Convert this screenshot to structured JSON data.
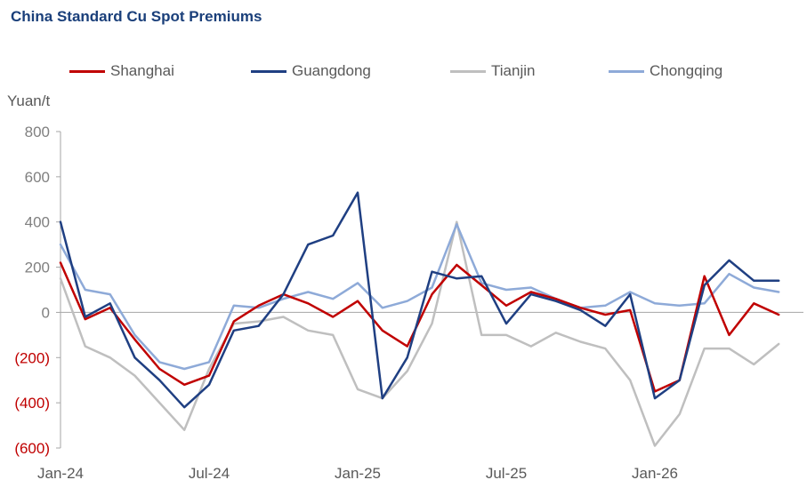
{
  "chart_data": {
    "type": "line",
    "title": "China Standard Cu Spot Premiums",
    "ylabel": "Yuan/t",
    "ylim": [
      -600,
      800
    ],
    "yticks": [
      {
        "value": 800,
        "label": "800",
        "color": "#808080"
      },
      {
        "value": 600,
        "label": "600",
        "color": "#808080"
      },
      {
        "value": 400,
        "label": "400",
        "color": "#808080"
      },
      {
        "value": 200,
        "label": "200",
        "color": "#808080"
      },
      {
        "value": 0,
        "label": "0",
        "color": "#808080"
      },
      {
        "value": -200,
        "label": "(200)",
        "color": "#c00000"
      },
      {
        "value": -400,
        "label": "(400)",
        "color": "#c00000"
      },
      {
        "value": -600,
        "label": "(600)",
        "color": "#c00000"
      }
    ],
    "xlim": [
      "2024-01",
      "2026-07"
    ],
    "xticks": [
      "Jan-24",
      "Jul-24",
      "Jan-25",
      "Jul-25",
      "Jan-26"
    ],
    "xtick_months": [
      "2024-01",
      "2024-07",
      "2025-01",
      "2025-07",
      "2026-01"
    ],
    "legend": "top",
    "grid": false,
    "series": [
      {
        "name": "Shanghai",
        "color": "#c00000",
        "x": [
          "2024-01",
          "2024-02",
          "2024-03",
          "2024-04",
          "2024-05",
          "2024-06",
          "2024-07",
          "2024-08",
          "2024-09",
          "2024-10",
          "2024-11",
          "2024-12",
          "2025-01",
          "2025-02",
          "2025-03",
          "2025-04",
          "2025-05",
          "2025-06",
          "2025-07",
          "2025-08",
          "2025-09",
          "2025-10",
          "2025-11",
          "2025-12",
          "2026-01",
          "2026-02",
          "2026-03",
          "2026-04",
          "2026-05",
          "2026-06"
        ],
        "values": [
          220,
          -30,
          20,
          -120,
          -250,
          -320,
          -280,
          -40,
          30,
          80,
          40,
          -20,
          50,
          -80,
          -150,
          80,
          210,
          120,
          30,
          90,
          60,
          20,
          -10,
          10,
          -350,
          -300,
          160,
          -100,
          40,
          -10
        ]
      },
      {
        "name": "Guangdong",
        "color": "#1f3f82",
        "x": [
          "2024-01",
          "2024-02",
          "2024-03",
          "2024-04",
          "2024-05",
          "2024-06",
          "2024-07",
          "2024-08",
          "2024-09",
          "2024-10",
          "2024-11",
          "2024-12",
          "2025-01",
          "2025-02",
          "2025-03",
          "2025-04",
          "2025-05",
          "2025-06",
          "2025-07",
          "2025-08",
          "2025-09",
          "2025-10",
          "2025-11",
          "2025-12",
          "2026-01",
          "2026-02",
          "2026-03",
          "2026-04",
          "2026-05",
          "2026-06"
        ],
        "values": [
          400,
          -20,
          40,
          -200,
          -300,
          -420,
          -320,
          -80,
          -60,
          80,
          300,
          340,
          530,
          -380,
          -200,
          180,
          150,
          160,
          -50,
          80,
          50,
          10,
          -60,
          80,
          -380,
          -300,
          120,
          230,
          140,
          140
        ]
      },
      {
        "name": "Tianjin",
        "color": "#bfbfbf",
        "x": [
          "2024-01",
          "2024-02",
          "2024-03",
          "2024-04",
          "2024-05",
          "2024-06",
          "2024-07",
          "2024-08",
          "2024-09",
          "2024-10",
          "2024-11",
          "2024-12",
          "2025-01",
          "2025-02",
          "2025-03",
          "2025-04",
          "2025-05",
          "2025-06",
          "2025-07",
          "2025-08",
          "2025-09",
          "2025-10",
          "2025-11",
          "2025-12",
          "2026-01",
          "2026-02",
          "2026-03",
          "2026-04",
          "2026-05",
          "2026-06"
        ],
        "values": [
          150,
          -150,
          -200,
          -280,
          -400,
          -520,
          -250,
          -50,
          -40,
          -20,
          -80,
          -100,
          -340,
          -380,
          -260,
          -50,
          400,
          -100,
          -100,
          -150,
          -90,
          -130,
          -160,
          -300,
          -590,
          -450,
          -160,
          -160,
          -230,
          -140
        ]
      },
      {
        "name": "Chongqing",
        "color": "#8eaad8",
        "x": [
          "2024-01",
          "2024-02",
          "2024-03",
          "2024-04",
          "2024-05",
          "2024-06",
          "2024-07",
          "2024-08",
          "2024-09",
          "2024-10",
          "2024-11",
          "2024-12",
          "2025-01",
          "2025-02",
          "2025-03",
          "2025-04",
          "2025-05",
          "2025-06",
          "2025-07",
          "2025-08",
          "2025-09",
          "2025-10",
          "2025-11",
          "2025-12",
          "2026-01",
          "2026-02",
          "2026-03",
          "2026-04",
          "2026-05",
          "2026-06"
        ],
        "values": [
          300,
          100,
          80,
          -100,
          -220,
          -250,
          -220,
          30,
          20,
          60,
          90,
          60,
          130,
          20,
          50,
          110,
          390,
          130,
          100,
          110,
          60,
          20,
          30,
          90,
          40,
          30,
          40,
          170,
          110,
          90
        ]
      }
    ]
  }
}
